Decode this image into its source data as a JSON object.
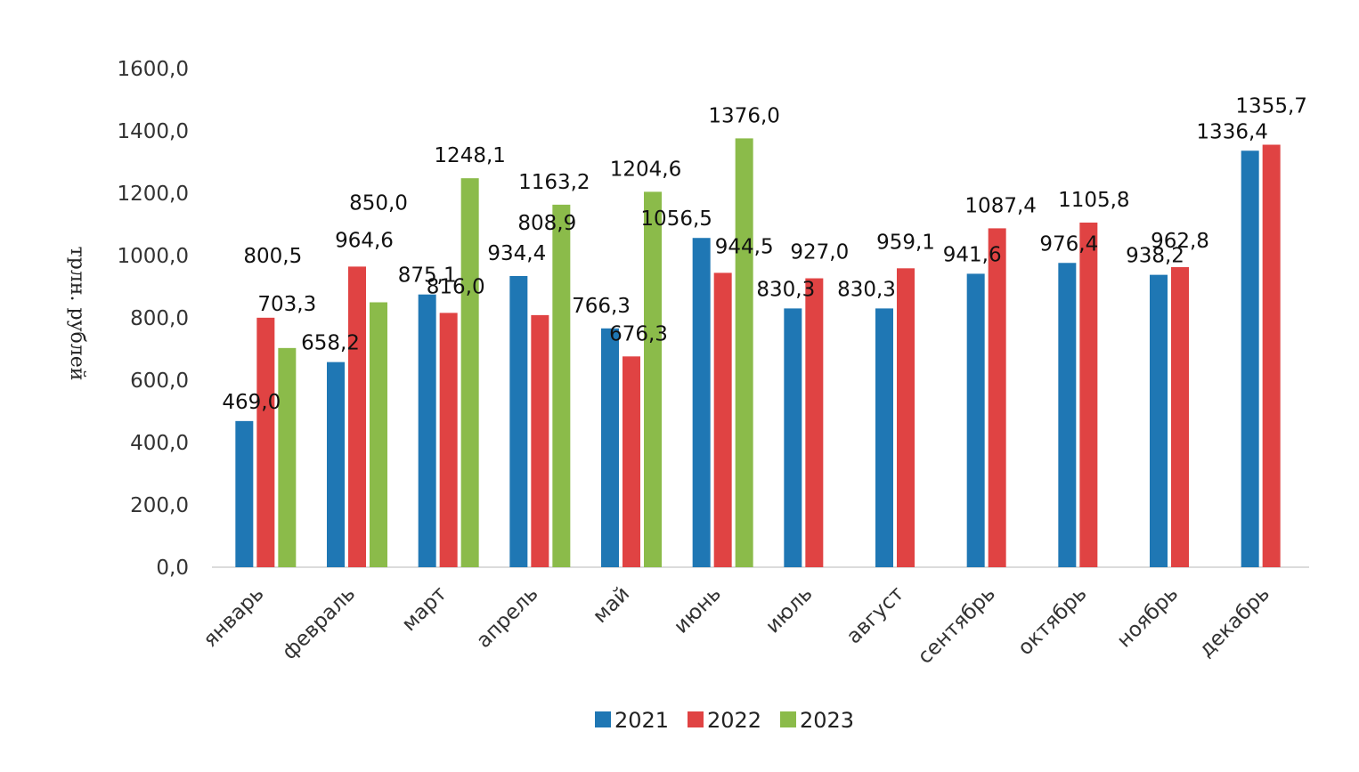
{
  "chart_data": {
    "type": "bar",
    "title": "",
    "xlabel": "",
    "ylabel": "трлн. рублей",
    "ylim": [
      0,
      1600
    ],
    "yticks": [
      "0,0",
      "200,0",
      "400,0",
      "600,0",
      "800,0",
      "1000,0",
      "1200,0",
      "1400,0",
      "1600,0"
    ],
    "grid": false,
    "legend_position": "bottom",
    "categories": [
      "январь",
      "февраль",
      "март",
      "апрель",
      "май",
      "июнь",
      "июль",
      "август",
      "сентябрь",
      "октябрь",
      "ноябрь",
      "декабрь"
    ],
    "series": [
      {
        "name": "2021",
        "color": "#1f77b4",
        "values": [
          469.0,
          658.2,
          875.1,
          934.4,
          766.3,
          1056.5,
          830.3,
          830.3,
          941.6,
          976.4,
          938.2,
          1336.4
        ],
        "labels": [
          "469,0",
          "658,2",
          "875,1",
          "934,4",
          "766,3",
          "1056,5",
          "830,3",
          "830,3",
          "941,6",
          "976,4",
          "938,2",
          "1336,4"
        ]
      },
      {
        "name": "2022",
        "color": "#e04343",
        "values": [
          800.5,
          964.6,
          816.0,
          808.9,
          676.3,
          944.5,
          927.0,
          959.1,
          1087.4,
          1105.8,
          962.8,
          1355.7
        ],
        "labels": [
          "800,5",
          "964,6",
          "816,0",
          "808,9",
          "676,3",
          "944,5",
          "927,0",
          "959,1",
          "1087,4",
          "1105,8",
          "962,8",
          "1355,7"
        ]
      },
      {
        "name": "2023",
        "color": "#8bbb4a",
        "values": [
          703.3,
          850.0,
          1248.1,
          1163.2,
          1204.6,
          1376.0,
          null,
          null,
          null,
          null,
          null,
          null
        ],
        "labels": [
          "703,3",
          "850,0",
          "1248,1",
          "1163,2",
          "1204,6",
          "1376,0",
          null,
          null,
          null,
          null,
          null,
          null
        ]
      }
    ]
  }
}
